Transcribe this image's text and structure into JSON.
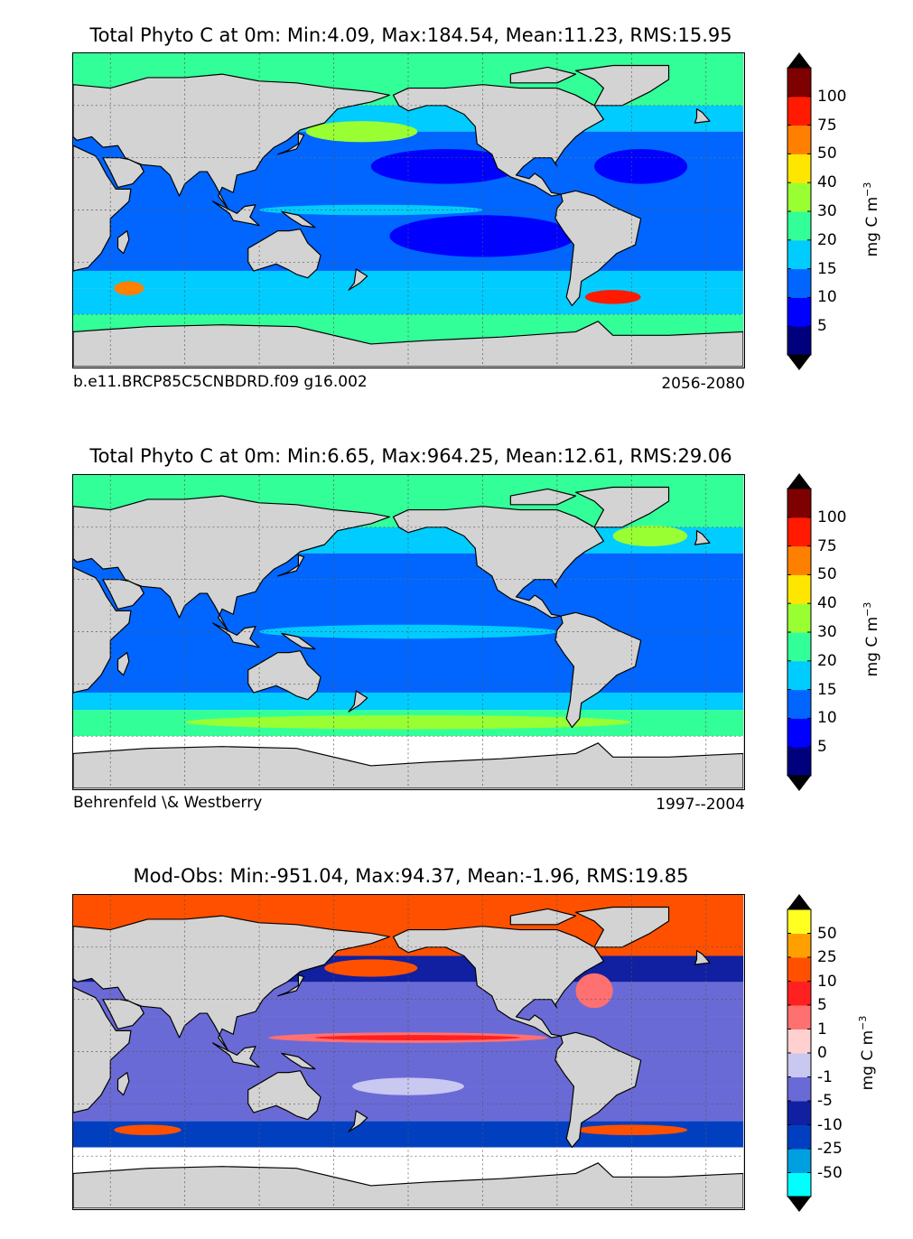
{
  "panels": [
    {
      "title": "Total Phyto C at 0m: Min:4.09, Max:184.54, Mean:11.23, RMS:15.95",
      "caption_left": "b.e11.BRCP85C5CNBDRD.f09 g16.002",
      "caption_right": "2056-2080",
      "colorbar_unit": "mg C m",
      "colorbar_unit_sup": "−3",
      "colorbar_ticks": [
        "5",
        "10",
        "15",
        "20",
        "30",
        "40",
        "50",
        "75",
        "100"
      ]
    },
    {
      "title": "Total Phyto C at 0m: Min:6.65, Max:964.25, Mean:12.61, RMS:29.06",
      "caption_left": "Behrenfeld \\& Westberry",
      "caption_right": "1997--2004",
      "colorbar_unit": "mg C m",
      "colorbar_unit_sup": "−3",
      "colorbar_ticks": [
        "5",
        "10",
        "15",
        "20",
        "30",
        "40",
        "50",
        "75",
        "100"
      ]
    },
    {
      "title": "Mod-Obs: Min:-951.04, Max:94.37, Mean:-1.96, RMS:19.85",
      "caption_left": "",
      "caption_right": "",
      "colorbar_unit": "mg C m",
      "colorbar_unit_sup": "−3",
      "colorbar_ticks": [
        "-50",
        "-25",
        "-10",
        "-5",
        "-1",
        "0",
        "1",
        "5",
        "10",
        "25",
        "50"
      ]
    }
  ],
  "chart_data": [
    {
      "type": "heatmap",
      "title": "Total Phyto C at 0m: Min:4.09, Max:184.54, Mean:11.23, RMS:15.95",
      "variable": "Total Phyto C at 0m",
      "stats": {
        "min": 4.09,
        "max": 184.54,
        "mean": 11.23,
        "rms": 15.95
      },
      "source": "b.e11.BRCP85C5CNBDRD.f09 g16.002",
      "period": "2056-2080",
      "colorbar": {
        "unit": "mg C m^-3",
        "levels": [
          5,
          10,
          15,
          20,
          30,
          40,
          50,
          75,
          100
        ],
        "colors": [
          "#00007f",
          "#0000ff",
          "#0066ff",
          "#00ccff",
          "#33ff99",
          "#99ff33",
          "#ffe600",
          "#ff8000",
          "#ff1a00",
          "#7f0000"
        ],
        "extend": "both"
      },
      "land_color": "#d3d3d3",
      "grid": true
    },
    {
      "type": "heatmap",
      "title": "Total Phyto C at 0m: Min:6.65, Max:964.25, Mean:12.61, RMS:29.06",
      "variable": "Total Phyto C at 0m",
      "stats": {
        "min": 6.65,
        "max": 964.25,
        "mean": 12.61,
        "rms": 29.06
      },
      "source": "Behrenfeld \\& Westberry",
      "period": "1997--2004",
      "colorbar": {
        "unit": "mg C m^-3",
        "levels": [
          5,
          10,
          15,
          20,
          30,
          40,
          50,
          75,
          100
        ],
        "colors": [
          "#00007f",
          "#0000ff",
          "#0066ff",
          "#00ccff",
          "#33ff99",
          "#99ff33",
          "#ffe600",
          "#ff8000",
          "#ff1a00",
          "#7f0000"
        ],
        "extend": "both"
      },
      "land_color": "#d3d3d3",
      "grid": true
    },
    {
      "type": "heatmap",
      "title": "Mod-Obs: Min:-951.04, Max:94.37, Mean:-1.96, RMS:19.85",
      "variable": "Mod-Obs",
      "stats": {
        "min": -951.04,
        "max": 94.37,
        "mean": -1.96,
        "rms": 19.85
      },
      "colorbar": {
        "unit": "mg C m^-3",
        "levels": [
          -50,
          -25,
          -10,
          -5,
          -1,
          0,
          1,
          5,
          10,
          25,
          50
        ],
        "colors": [
          "#00ffff",
          "#00a0e0",
          "#0040c0",
          "#1020a0",
          "#6a6ad6",
          "#c8c8f0",
          "#ffd0d0",
          "#ff7070",
          "#ff2020",
          "#ff5000",
          "#ffa000",
          "#ffff20"
        ],
        "extend": "both"
      },
      "land_color": "#d3d3d3",
      "grid": true
    }
  ]
}
